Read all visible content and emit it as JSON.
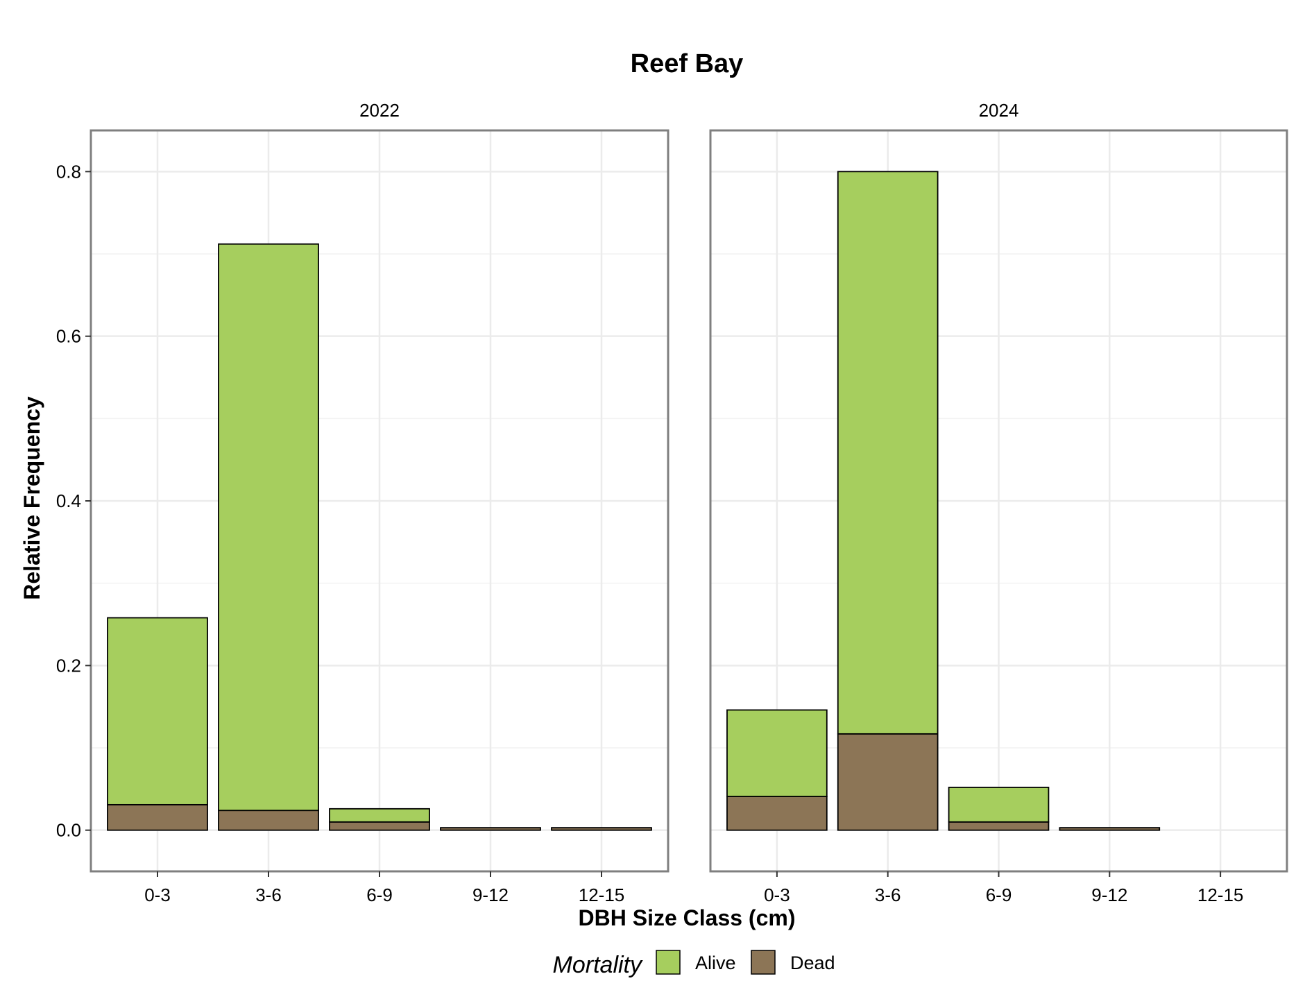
{
  "chart_data": {
    "type": "bar",
    "stacked": true,
    "title": "Reef Bay",
    "xlabel": "DBH Size Class (cm)",
    "ylabel": "Relative Frequency",
    "ylim": [
      -0.05,
      0.85
    ],
    "yticks": [
      0.0,
      0.2,
      0.4,
      0.6,
      0.8
    ],
    "ytick_labels": [
      "0.0",
      "0.2",
      "0.4",
      "0.6",
      "0.8"
    ],
    "categories": [
      "0-3",
      "3-6",
      "6-9",
      "9-12",
      "12-15"
    ],
    "grid": true,
    "legend": {
      "title": "Mortality",
      "position": "bottom",
      "entries": [
        {
          "label": "Alive",
          "color": "#a6ce5e"
        },
        {
          "label": "Dead",
          "color": "#8c7556"
        }
      ]
    },
    "panels": [
      {
        "label": "2022",
        "series": [
          {
            "name": "Dead",
            "values": [
              0.031,
              0.024,
              0.01,
              0.003,
              0.003
            ]
          },
          {
            "name": "Alive",
            "values": [
              0.227,
              0.688,
              0.016,
              0.0,
              0.0
            ]
          }
        ]
      },
      {
        "label": "2024",
        "series": [
          {
            "name": "Dead",
            "values": [
              0.041,
              0.117,
              0.01,
              0.003,
              0.0
            ]
          },
          {
            "name": "Alive",
            "values": [
              0.105,
              0.683,
              0.042,
              0.0,
              0.0
            ]
          }
        ]
      }
    ]
  }
}
